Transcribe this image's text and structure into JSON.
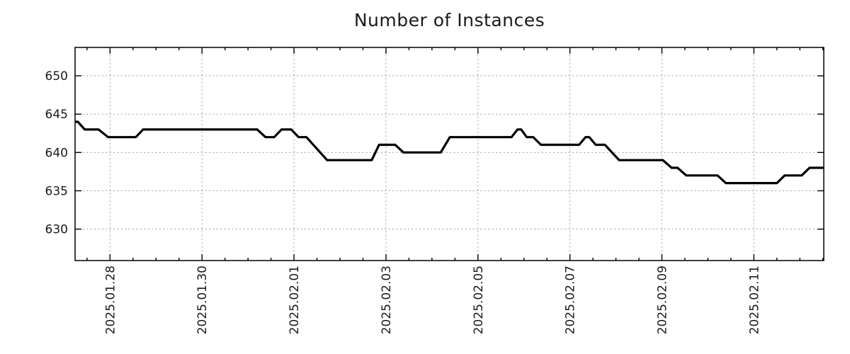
{
  "title": "Number of Instances",
  "chart_data": {
    "type": "line",
    "title": "Number of Instances",
    "xlabel": "",
    "ylabel": "",
    "grid": true,
    "legend_position": "none",
    "line_color": "#000000",
    "line_width": 3.2,
    "grid_color": "#9e9e9e",
    "x_axis": {
      "unit": "days since 2025-01-28 00:00",
      "range": [
        -0.76,
        15.52
      ],
      "minor_tick_step": 0.5,
      "major_ticks": [
        {
          "value": 0,
          "label": "2025.01.28"
        },
        {
          "value": 2,
          "label": "2025.01.30"
        },
        {
          "value": 4,
          "label": "2025.02.01"
        },
        {
          "value": 6,
          "label": "2025.02.03"
        },
        {
          "value": 8,
          "label": "2025.02.05"
        },
        {
          "value": 10,
          "label": "2025.02.07"
        },
        {
          "value": 12,
          "label": "2025.02.09"
        },
        {
          "value": 14,
          "label": "2025.02.11"
        }
      ]
    },
    "y_axis": {
      "range": [
        625.9,
        653.7
      ],
      "major_ticks": [
        {
          "value": 630,
          "label": "630"
        },
        {
          "value": 635,
          "label": "635"
        },
        {
          "value": 640,
          "label": "640"
        },
        {
          "value": 645,
          "label": "645"
        },
        {
          "value": 650,
          "label": "650"
        }
      ]
    },
    "series": [
      {
        "name": "instances",
        "points": [
          [
            -0.76,
            644
          ],
          [
            -0.7,
            644
          ],
          [
            -0.55,
            643
          ],
          [
            -0.25,
            643
          ],
          [
            -0.04,
            642
          ],
          [
            0.56,
            642
          ],
          [
            0.72,
            643
          ],
          [
            3.2,
            643
          ],
          [
            3.38,
            642
          ],
          [
            3.57,
            642
          ],
          [
            3.73,
            643
          ],
          [
            3.94,
            643
          ],
          [
            4.1,
            642
          ],
          [
            4.27,
            642
          ],
          [
            4.72,
            639
          ],
          [
            5.69,
            639
          ],
          [
            5.85,
            641
          ],
          [
            6.2,
            641
          ],
          [
            6.38,
            640
          ],
          [
            7.19,
            640
          ],
          [
            7.39,
            642
          ],
          [
            8.73,
            642
          ],
          [
            8.86,
            643
          ],
          [
            8.94,
            643
          ],
          [
            9.06,
            642
          ],
          [
            9.2,
            642
          ],
          [
            9.37,
            641
          ],
          [
            10.2,
            641
          ],
          [
            10.34,
            642
          ],
          [
            10.42,
            642
          ],
          [
            10.56,
            641
          ],
          [
            10.76,
            641
          ],
          [
            11.07,
            639
          ],
          [
            12.02,
            639
          ],
          [
            12.21,
            638
          ],
          [
            12.34,
            638
          ],
          [
            12.53,
            637
          ],
          [
            13.21,
            637
          ],
          [
            13.39,
            636
          ],
          [
            14.5,
            636
          ],
          [
            14.67,
            637
          ],
          [
            15.04,
            637
          ],
          [
            15.21,
            638
          ],
          [
            15.52,
            638
          ]
        ]
      }
    ]
  }
}
